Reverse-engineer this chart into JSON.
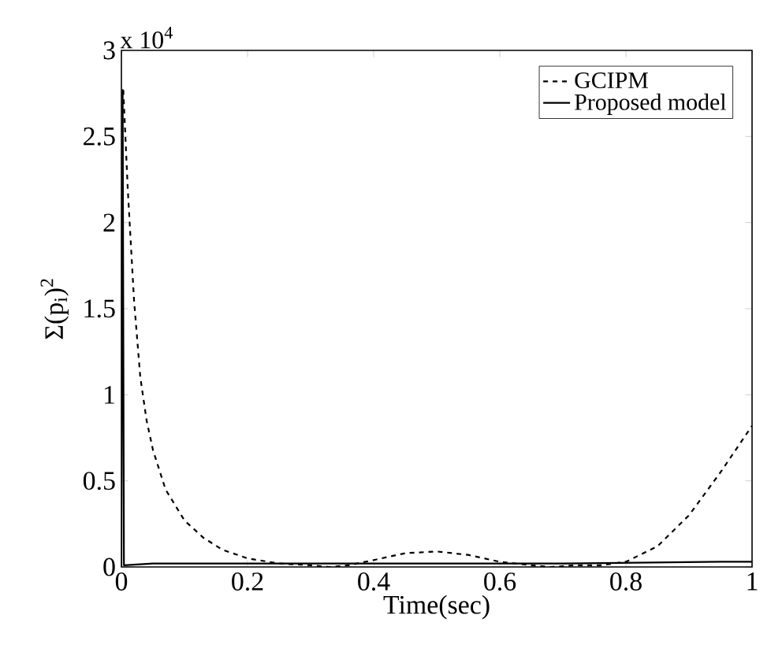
{
  "chart_data": {
    "type": "line",
    "xlabel": "Time(sec)",
    "ylabel": "Σ(p$_{i}$)$^{2}$",
    "annotations": [
      "x 10$^{4}$"
    ],
    "xlim": [
      0,
      1
    ],
    "xticks": [
      0,
      0.2,
      0.4,
      0.6,
      0.8,
      1
    ],
    "ylim": [
      0,
      3
    ],
    "yticks": [
      0,
      0.5,
      1,
      1.5,
      2,
      2.5,
      3
    ],
    "grid": false,
    "legend": "top right",
    "marker": "none",
    "series": [
      {
        "name": "GCIPM",
        "color": "#000000",
        "line_style": "dashed",
        "x": [
          0.003,
          0.01,
          0.02,
          0.03,
          0.04,
          0.05,
          0.07,
          0.1,
          0.13,
          0.16,
          0.2,
          0.25,
          0.3,
          0.33,
          0.36,
          0.4,
          0.45,
          0.5,
          0.55,
          0.6,
          0.65,
          0.68,
          0.72,
          0.76,
          0.8,
          0.85,
          0.9,
          0.95,
          1
        ],
        "values": [
          2.77,
          2.2,
          1.55,
          1.1,
          0.85,
          0.68,
          0.45,
          0.27,
          0.17,
          0.1,
          0.05,
          0.02,
          0.01,
          0,
          0.01,
          0.04,
          0.08,
          0.09,
          0.07,
          0.03,
          0.01,
          0,
          0.01,
          0.01,
          0.03,
          0.12,
          0.3,
          0.55,
          0.82
        ]
      },
      {
        "name": "Proposed model",
        "color": "#000000",
        "line_style": "solid",
        "x": [
          0,
          0.002,
          0.004,
          0.05,
          0.3,
          0.5,
          0.7,
          0.95,
          1
        ],
        "values": [
          0,
          2.77,
          0.01,
          0.02,
          0.02,
          0.02,
          0.02,
          0.03,
          0.03
        ]
      }
    ]
  }
}
